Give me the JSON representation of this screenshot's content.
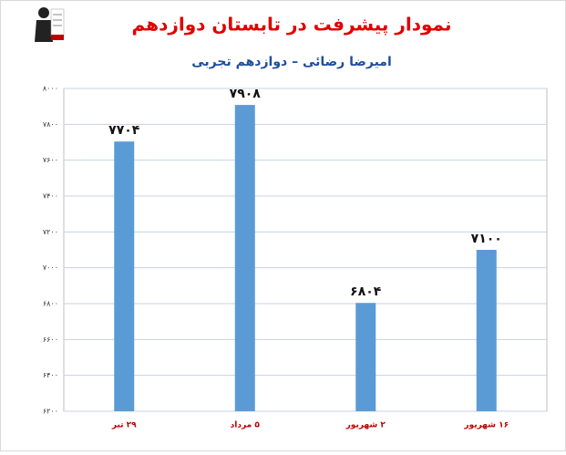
{
  "chart_data": {
    "type": "bar",
    "title": "نمودار پیشرفت در تابستان دوازدهم",
    "subtitle": "امیرضا رضائی – دوازدهم تجربی",
    "categories": [
      "۲۹ تیر",
      "۵ مرداد",
      "۲ شهریور",
      "۱۶ شهریور"
    ],
    "values": [
      7704,
      7908,
      6804,
      7100
    ],
    "value_labels": [
      "۷۷۰۴",
      "۷۹۰۸",
      "۶۸۰۴",
      "۷۱۰۰"
    ],
    "color": "#5b9bd5",
    "ylim": [
      6200,
      8000
    ],
    "yticks": [
      {
        "value": 6200,
        "label": "۶۲۰۰"
      },
      {
        "value": 6400,
        "label": "۶۴۰۰"
      },
      {
        "value": 6600,
        "label": "۶۶۰۰"
      },
      {
        "value": 6800,
        "label": "۶۸۰۰"
      },
      {
        "value": 7000,
        "label": "۷۰۰۰"
      },
      {
        "value": 7200,
        "label": "۷۲۰۰"
      },
      {
        "value": 7400,
        "label": "۷۴۰۰"
      },
      {
        "value": 7600,
        "label": "۷۶۰۰"
      },
      {
        "value": 7800,
        "label": "۷۸۰۰"
      },
      {
        "value": 8000,
        "label": "۸۰۰۰"
      }
    ],
    "grid": true
  }
}
